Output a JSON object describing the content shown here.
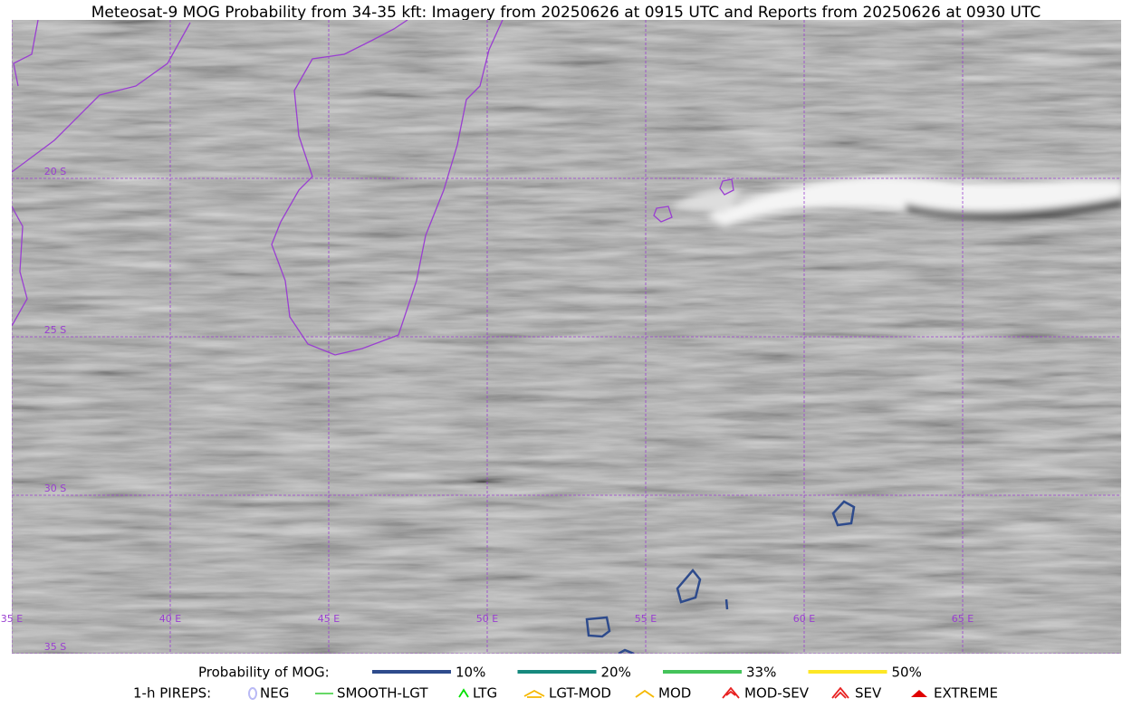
{
  "title": "Meteosat-9 MOG Probability from 34-35 kft: Imagery from 20250626 at 0915 UTC and Reports from 20250626 at 0930 UTC",
  "map": {
    "longitude_labels": [
      "35 E",
      "40 E",
      "45 E",
      "50 E",
      "55 E",
      "60 E",
      "65 E"
    ],
    "latitude_labels": [
      "20 S",
      "25 S",
      "30 S",
      "35 S"
    ]
  },
  "legend": {
    "probability": {
      "label": "Probability of MOG:",
      "items": [
        {
          "label": "10%",
          "color": "#2e4b8c"
        },
        {
          "label": "20%",
          "color": "#16897e"
        },
        {
          "label": "33%",
          "color": "#44c35a"
        },
        {
          "label": "50%",
          "color": "#fde725"
        }
      ]
    },
    "pireps": {
      "label": "1-h PIREPS:",
      "items": [
        {
          "label": "NEG",
          "color": "#b9b9f5"
        },
        {
          "label": "SMOOTH-LGT",
          "color": "#33cc33"
        },
        {
          "label": "LTG",
          "color": "#00e000"
        },
        {
          "label": "LGT-MOD",
          "color": "#f5b800"
        },
        {
          "label": "MOD",
          "color": "#f5b800"
        },
        {
          "label": "MOD-SEV",
          "color": "#e82020"
        },
        {
          "label": "SEV",
          "color": "#e82020"
        },
        {
          "label": "EXTREME",
          "color": "#e00000"
        }
      ]
    }
  }
}
